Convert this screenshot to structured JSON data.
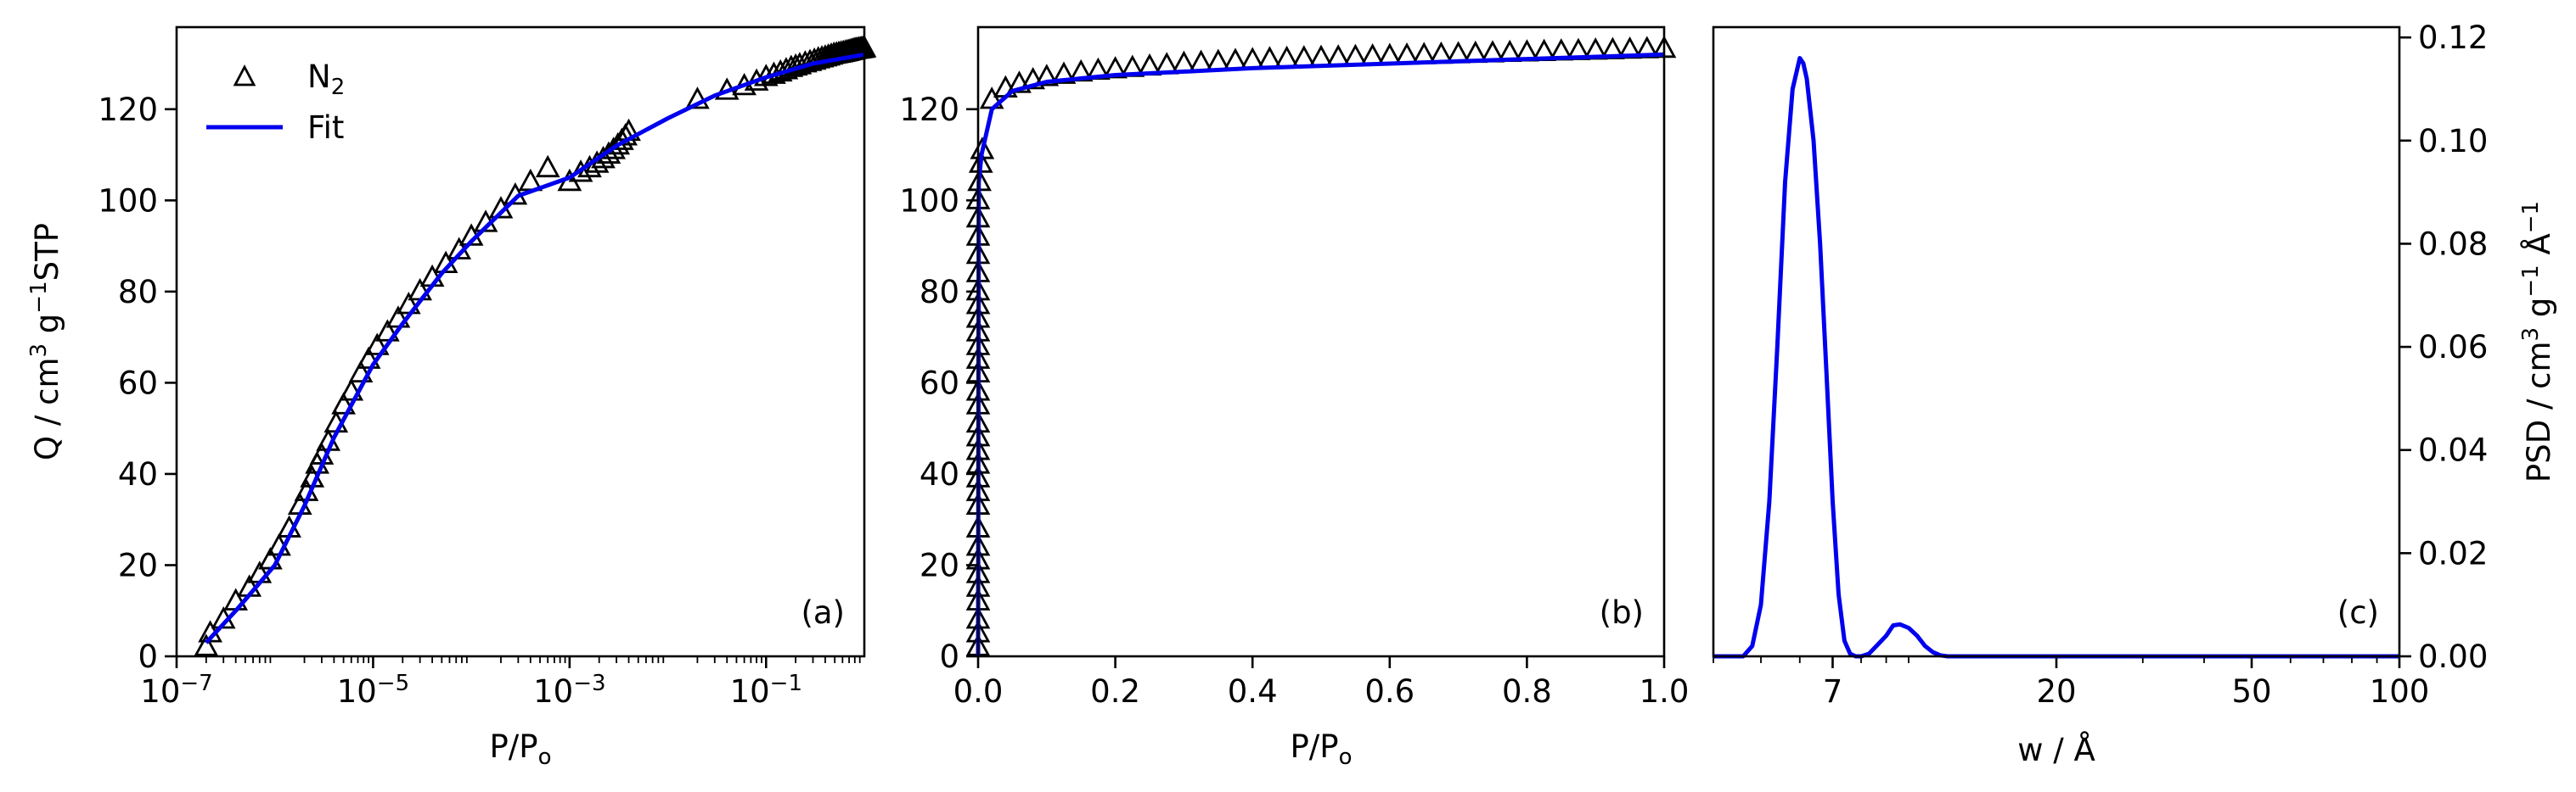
{
  "chart_data": [
    {
      "type": "scatter",
      "panel": "(a)",
      "x_scale": "log",
      "xlim": [
        1e-07,
        1
      ],
      "ylim": [
        0,
        138
      ],
      "xlabel": "P/P",
      "xlabel_sub": "o",
      "ylabel": "Q / cm",
      "ylabel_sup1": "3",
      "ylabel_mid": " g",
      "ylabel_sup2": "−1",
      "ylabel_end": "STP",
      "x_ticks": [
        1e-07,
        1e-05,
        0.001,
        0.1
      ],
      "x_tick_base": [
        "10",
        "10",
        "10",
        "10"
      ],
      "x_tick_exp": [
        "−7",
        "−5",
        "−3",
        "−1"
      ],
      "y_ticks": [
        0,
        20,
        40,
        60,
        80,
        100,
        120
      ],
      "legend": {
        "placement": "top-left",
        "entries": [
          {
            "name": "N",
            "sub": "2",
            "kind": "marker"
          },
          {
            "name": "Fit",
            "kind": "line"
          }
        ]
      },
      "series": [
        {
          "name": "N2",
          "kind": "marker",
          "x": [
            2e-07,
            2.2e-07,
            3e-07,
            4e-07,
            5.5e-07,
            7e-07,
            9e-07,
            1.1e-06,
            1.4e-06,
            1.8e-06,
            2.1e-06,
            2.4e-06,
            2.7e-06,
            3e-06,
            3.5e-06,
            4.2e-06,
            5e-06,
            6e-06,
            7.5e-06,
            9e-06,
            1.1e-05,
            1.4e-05,
            1.8e-05,
            2.3e-05,
            3e-05,
            4e-05,
            5.5e-05,
            7.5e-05,
            0.0001,
            0.00014,
            0.0002,
            0.00028,
            0.0004,
            0.0006,
            0.001,
            0.0013,
            0.0016,
            0.0019,
            0.0022,
            0.0025,
            0.0028,
            0.0031,
            0.0034,
            0.0037,
            0.004,
            0.02,
            0.04,
            0.06,
            0.08,
            0.1,
            0.12,
            0.14,
            0.16,
            0.18,
            0.2,
            0.22,
            0.25,
            0.28,
            0.31,
            0.34,
            0.37,
            0.4,
            0.43,
            0.46,
            0.49,
            0.52,
            0.55,
            0.58,
            0.61,
            0.64,
            0.67,
            0.7,
            0.73,
            0.76,
            0.79,
            0.82,
            0.85,
            0.88,
            0.91,
            0.94,
            0.97,
            1.0
          ],
          "y": [
            2,
            5,
            8,
            12,
            15,
            18,
            21,
            24,
            28,
            33,
            36,
            39,
            42,
            44,
            47,
            51,
            55,
            58,
            62,
            65,
            68,
            71,
            74,
            77,
            80,
            83,
            86,
            89,
            92,
            95,
            98,
            101,
            104,
            107,
            104,
            106,
            107,
            108,
            109,
            110,
            111,
            112,
            113,
            114,
            115,
            122,
            124,
            125,
            126,
            127,
            127.5,
            128,
            128.5,
            129,
            129.3,
            129.6,
            130,
            130.3,
            130.6,
            130.9,
            131.1,
            131.3,
            131.5,
            131.7,
            131.9,
            132,
            132.1,
            132.2,
            132.3,
            132.4,
            132.5,
            132.6,
            132.7,
            132.8,
            132.9,
            133,
            133,
            133.1,
            133.1,
            133.2,
            133.2,
            133.3
          ]
        },
        {
          "name": "Fit",
          "kind": "line",
          "color": "#0000ee",
          "x": [
            2e-07,
            4e-07,
            1e-06,
            2e-06,
            4e-06,
            1e-05,
            2e-05,
            5e-05,
            0.0001,
            0.0003,
            0.001,
            0.003,
            0.01,
            0.03,
            0.1,
            0.3,
            1.0
          ],
          "y": [
            3,
            10,
            20,
            33,
            48,
            64,
            73,
            84,
            91,
            101,
            105,
            112,
            118,
            123,
            127,
            130,
            132
          ]
        }
      ]
    },
    {
      "type": "scatter",
      "panel": "(b)",
      "x_scale": "linear",
      "xlim": [
        0,
        1.0
      ],
      "ylim": [
        0,
        138
      ],
      "xlabel": "P/P",
      "xlabel_sub": "o",
      "x_ticks": [
        0.0,
        0.2,
        0.4,
        0.6,
        0.8,
        1.0
      ],
      "x_tick_labels": [
        "0.0",
        "0.2",
        "0.4",
        "0.6",
        "0.8",
        "1.0"
      ],
      "y_ticks": [
        0,
        20,
        40,
        60,
        80,
        100,
        120
      ],
      "series": [
        {
          "name": "N2",
          "kind": "marker",
          "x": [
            0.0,
            0.0,
            0.0,
            0.0,
            0.0,
            0.0,
            0.0,
            0.0,
            0.0,
            0.0,
            0.0,
            0.0,
            0.0,
            0.0,
            0.0,
            0.0,
            0.0,
            0.0,
            0.0,
            0.0,
            0.0,
            0.0,
            0.0,
            0.0,
            0.0,
            0.0,
            0.0,
            0.0,
            0.0,
            0.0,
            0.002,
            0.004,
            0.006,
            0.02,
            0.04,
            0.06,
            0.08,
            0.1,
            0.125,
            0.15,
            0.175,
            0.2,
            0.225,
            0.25,
            0.275,
            0.3,
            0.325,
            0.35,
            0.375,
            0.4,
            0.425,
            0.45,
            0.475,
            0.5,
            0.525,
            0.55,
            0.575,
            0.6,
            0.625,
            0.65,
            0.675,
            0.7,
            0.725,
            0.75,
            0.775,
            0.8,
            0.825,
            0.85,
            0.875,
            0.9,
            0.925,
            0.95,
            0.975,
            1.0
          ],
          "y": [
            2,
            5,
            8,
            12,
            15,
            18,
            21,
            24,
            28,
            33,
            36,
            39,
            42,
            45,
            48,
            51,
            55,
            58,
            62,
            65,
            68,
            71,
            74,
            77,
            80,
            84,
            88,
            92,
            96,
            100,
            104,
            108,
            111,
            122,
            124.5,
            125.5,
            126.3,
            127,
            127.5,
            128,
            128.4,
            128.7,
            129,
            129.3,
            129.6,
            129.9,
            130.1,
            130.3,
            130.5,
            130.7,
            130.9,
            131,
            131.1,
            131.2,
            131.3,
            131.4,
            131.5,
            131.6,
            131.7,
            131.8,
            131.9,
            132,
            132.1,
            132.2,
            132.3,
            132.4,
            132.5,
            132.6,
            132.7,
            132.8,
            132.9,
            133,
            133.1,
            133.2
          ]
        },
        {
          "name": "Fit",
          "kind": "line",
          "color": "#0000ee",
          "x": [
            0.0,
            0.001,
            0.005,
            0.02,
            0.05,
            0.1,
            0.2,
            0.4,
            0.6,
            0.8,
            1.0
          ],
          "y": [
            0,
            104,
            110,
            120,
            124,
            126,
            127.5,
            129,
            130,
            131,
            132
          ]
        }
      ]
    },
    {
      "type": "line",
      "panel": "(c)",
      "x_scale": "log",
      "xlim": [
        4,
        100
      ],
      "ylim": [
        0,
        0.122
      ],
      "xlabel": "w / Å",
      "ylabel": "PSD / cm",
      "ylabel_sup1": "3",
      "ylabel_mid": " g",
      "ylabel_sup2": "−1",
      "ylabel_end": " Å",
      "ylabel_sup3": "−1",
      "y_axis_side": "right",
      "x_ticks": [
        7,
        20,
        50,
        100
      ],
      "x_tick_labels": [
        "7",
        "20",
        "50",
        "100"
      ],
      "y_ticks": [
        0.0,
        0.02,
        0.04,
        0.06,
        0.08,
        0.1,
        0.12
      ],
      "y_tick_labels": [
        "0.00",
        "0.02",
        "0.04",
        "0.06",
        "0.08",
        "0.10",
        "0.12"
      ],
      "series": [
        {
          "name": "PSD",
          "color": "#0000ee",
          "x": [
            4.0,
            4.6,
            4.8,
            5.0,
            5.2,
            5.4,
            5.6,
            5.8,
            6.0,
            6.1,
            6.2,
            6.4,
            6.6,
            6.8,
            7.0,
            7.2,
            7.4,
            7.6,
            7.8,
            8.0,
            8.3,
            8.6,
            9.0,
            9.3,
            9.6,
            10.0,
            10.4,
            10.8,
            11.2,
            11.6,
            12.0,
            13,
            15,
            20,
            30,
            50,
            100
          ],
          "y": [
            0,
            0,
            0.002,
            0.01,
            0.03,
            0.06,
            0.092,
            0.11,
            0.116,
            0.115,
            0.112,
            0.1,
            0.08,
            0.055,
            0.03,
            0.012,
            0.003,
            0.0005,
            0,
            0,
            0.0005,
            0.002,
            0.004,
            0.006,
            0.0062,
            0.0055,
            0.004,
            0.002,
            0.0008,
            0.0002,
            0,
            0,
            0,
            0,
            0,
            0,
            0
          ]
        }
      ]
    }
  ]
}
